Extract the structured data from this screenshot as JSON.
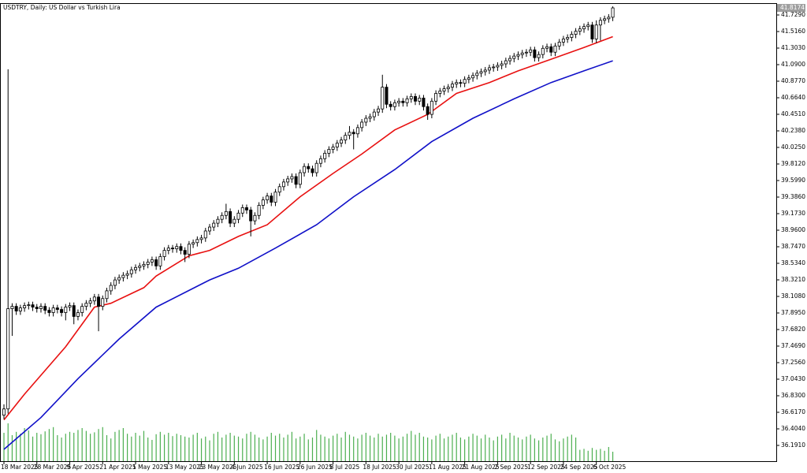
{
  "chart_data": {
    "type": "candlestick",
    "title": "USDTRY, Daily:  US Dollar vs Turkish Lira",
    "current_price_label": "41.8174",
    "categories": [
      "18 Mar 2025",
      null,
      null,
      null,
      null,
      null,
      null,
      null,
      "28 Mar 2025",
      null,
      null,
      null,
      null,
      null,
      null,
      null,
      "9 Apr 2025",
      null,
      null,
      null,
      null,
      null,
      null,
      null,
      "21 Apr 2025",
      null,
      null,
      null,
      null,
      null,
      null,
      null,
      "1 May 2025",
      null,
      null,
      null,
      null,
      null,
      null,
      null,
      "13 May 2025",
      null,
      null,
      null,
      null,
      null,
      null,
      null,
      "23 May 2025",
      null,
      null,
      null,
      null,
      null,
      null,
      null,
      "4 Jun 2025",
      null,
      null,
      null,
      null,
      null,
      null,
      null,
      "16 Jun 2025",
      null,
      null,
      null,
      null,
      null,
      null,
      null,
      "26 Jun 2025",
      null,
      null,
      null,
      null,
      null,
      null,
      null,
      "8 Jul 2025",
      null,
      null,
      null,
      null,
      null,
      null,
      null,
      "18 Jul 2025",
      null,
      null,
      null,
      null,
      null,
      null,
      null,
      "30 Jul 2025",
      null,
      null,
      null,
      null,
      null,
      null,
      null,
      "11 Aug 2025",
      null,
      null,
      null,
      null,
      null,
      null,
      null,
      "21 Aug 2025",
      null,
      null,
      null,
      null,
      null,
      null,
      null,
      "2 Sep 2025",
      null,
      null,
      null,
      null,
      null,
      null,
      null,
      "12 Sep 2025",
      null,
      null,
      null,
      null,
      null,
      null,
      null,
      "24 Sep 2025",
      null,
      null,
      null,
      null,
      null,
      null,
      null,
      "6 Oct 2025",
      null,
      null,
      null,
      null
    ],
    "open": [
      36.58,
      36.66,
      37.95,
      37.98,
      37.92,
      37.96,
      37.99,
      38.0,
      37.97,
      37.95,
      37.98,
      37.93,
      37.9,
      37.96,
      37.94,
      37.9,
      37.97,
      37.99,
      37.85,
      37.9,
      37.98,
      38.02,
      38.05,
      38.1,
      37.98,
      38.08,
      38.18,
      38.25,
      38.32,
      38.35,
      38.38,
      38.4,
      38.45,
      38.48,
      38.5,
      38.52,
      38.55,
      38.58,
      38.5,
      38.62,
      38.7,
      38.73,
      38.72,
      38.75,
      38.7,
      38.65,
      38.78,
      38.8,
      38.84,
      38.86,
      38.95,
      39.0,
      39.05,
      39.1,
      39.15,
      39.2,
      39.05,
      39.1,
      39.18,
      39.25,
      39.22,
      39.08,
      39.15,
      39.28,
      39.35,
      39.4,
      39.32,
      39.45,
      39.52,
      39.58,
      39.62,
      39.65,
      39.55,
      39.7,
      39.78,
      39.75,
      39.7,
      39.82,
      39.88,
      39.95,
      40.0,
      40.03,
      40.08,
      40.12,
      40.18,
      40.22,
      40.2,
      40.28,
      40.35,
      40.4,
      40.42,
      40.48,
      40.52,
      40.8,
      40.58,
      40.55,
      40.6,
      40.62,
      40.6,
      40.65,
      40.68,
      40.62,
      40.66,
      40.55,
      40.45,
      40.62,
      40.72,
      40.75,
      40.78,
      40.8,
      40.84,
      40.86,
      40.85,
      40.9,
      40.92,
      40.95,
      40.98,
      41.0,
      41.02,
      41.05,
      41.06,
      41.08,
      41.1,
      41.14,
      41.17,
      41.2,
      41.22,
      41.24,
      41.25,
      41.28,
      41.18,
      41.22,
      41.3,
      41.32,
      41.25,
      41.33,
      41.38,
      41.42,
      41.44,
      41.48,
      41.52,
      41.55,
      41.58,
      41.6,
      41.42,
      41.6,
      41.66,
      41.68,
      41.7
    ],
    "high": [
      36.72,
      41.03,
      38.02,
      38.02,
      38.0,
      38.03,
      38.04,
      38.04,
      38.01,
      38.02,
      38.02,
      37.97,
      38.0,
      38.0,
      37.98,
      38.01,
      38.03,
      38.03,
      37.94,
      38.02,
      38.06,
      38.09,
      38.14,
      38.14,
      38.12,
      38.22,
      38.29,
      38.36,
      38.39,
      38.42,
      38.44,
      38.49,
      38.52,
      38.54,
      38.56,
      38.59,
      38.62,
      38.62,
      38.66,
      38.74,
      38.77,
      38.77,
      38.79,
      38.79,
      38.74,
      38.82,
      38.84,
      38.88,
      38.9,
      38.99,
      39.04,
      39.09,
      39.14,
      39.19,
      39.3,
      39.24,
      39.14,
      39.22,
      39.29,
      39.29,
      39.26,
      39.19,
      39.32,
      39.39,
      39.44,
      39.44,
      39.49,
      39.56,
      39.62,
      39.66,
      39.69,
      39.69,
      39.74,
      39.82,
      39.82,
      39.79,
      39.86,
      39.92,
      39.99,
      40.04,
      40.07,
      40.12,
      40.16,
      40.22,
      40.3,
      40.26,
      40.32,
      40.39,
      40.44,
      40.46,
      40.52,
      40.56,
      40.96,
      40.84,
      40.62,
      40.64,
      40.66,
      40.66,
      40.69,
      40.72,
      40.72,
      40.7,
      40.7,
      40.59,
      40.66,
      40.76,
      40.79,
      40.82,
      40.84,
      40.88,
      40.9,
      40.9,
      40.94,
      40.96,
      40.99,
      41.02,
      41.04,
      41.06,
      41.09,
      41.1,
      41.12,
      41.14,
      41.18,
      41.21,
      41.24,
      41.26,
      41.28,
      41.29,
      41.32,
      41.32,
      41.26,
      41.34,
      41.36,
      41.36,
      41.37,
      41.42,
      41.46,
      41.48,
      41.52,
      41.56,
      41.59,
      41.62,
      41.64,
      41.64,
      41.66,
      41.7,
      41.72,
      41.74,
      41.84
    ],
    "low": [
      36.53,
      36.6,
      37.6,
      37.87,
      37.87,
      37.91,
      37.94,
      37.92,
      37.9,
      37.9,
      37.88,
      37.85,
      37.85,
      37.89,
      37.85,
      37.8,
      37.92,
      37.75,
      37.8,
      37.85,
      37.93,
      37.97,
      38.0,
      37.66,
      37.93,
      38.03,
      38.13,
      38.2,
      38.27,
      38.3,
      38.33,
      38.35,
      38.4,
      38.43,
      38.45,
      38.47,
      38.5,
      38.45,
      38.45,
      38.57,
      38.65,
      38.67,
      38.67,
      38.65,
      38.55,
      38.6,
      38.73,
      38.75,
      38.79,
      38.81,
      38.9,
      38.95,
      39.0,
      39.05,
      39.1,
      39.0,
      39.0,
      39.05,
      39.13,
      39.17,
      38.88,
      39.03,
      39.1,
      39.23,
      39.3,
      39.27,
      39.27,
      39.4,
      39.47,
      39.53,
      39.57,
      39.5,
      39.5,
      39.65,
      39.7,
      39.65,
      39.65,
      39.77,
      39.83,
      39.9,
      39.95,
      39.98,
      40.03,
      40.07,
      40.13,
      40.0,
      40.15,
      40.23,
      40.3,
      40.35,
      40.37,
      40.43,
      40.47,
      40.53,
      40.5,
      40.5,
      40.55,
      40.55,
      40.55,
      40.6,
      40.57,
      40.57,
      40.5,
      40.38,
      40.4,
      40.57,
      40.67,
      40.7,
      40.73,
      40.75,
      40.79,
      40.8,
      40.8,
      40.85,
      40.87,
      40.9,
      40.93,
      40.95,
      40.97,
      41.0,
      41.01,
      41.03,
      41.05,
      41.09,
      41.12,
      41.15,
      41.17,
      41.19,
      41.2,
      41.13,
      41.13,
      41.17,
      41.25,
      41.2,
      41.2,
      41.28,
      41.33,
      41.37,
      41.39,
      41.43,
      41.47,
      41.5,
      41.53,
      41.37,
      41.37,
      41.4,
      41.61,
      41.63,
      41.65
    ],
    "close": [
      36.66,
      37.95,
      37.98,
      37.92,
      37.96,
      37.99,
      38.0,
      37.97,
      37.95,
      37.98,
      37.93,
      37.9,
      37.96,
      37.94,
      37.9,
      37.97,
      37.99,
      37.85,
      37.9,
      37.98,
      38.02,
      38.05,
      38.1,
      37.98,
      38.08,
      38.18,
      38.25,
      38.32,
      38.35,
      38.38,
      38.4,
      38.45,
      38.48,
      38.5,
      38.52,
      38.55,
      38.58,
      38.5,
      38.62,
      38.7,
      38.73,
      38.72,
      38.75,
      38.7,
      38.65,
      38.78,
      38.8,
      38.84,
      38.86,
      38.95,
      39.0,
      39.05,
      39.1,
      39.15,
      39.2,
      39.05,
      39.1,
      39.18,
      39.25,
      39.22,
      39.08,
      39.15,
      39.28,
      39.35,
      39.4,
      39.32,
      39.45,
      39.52,
      39.58,
      39.62,
      39.65,
      39.55,
      39.7,
      39.78,
      39.75,
      39.7,
      39.82,
      39.88,
      39.95,
      40.0,
      40.03,
      40.08,
      40.12,
      40.18,
      40.22,
      40.2,
      40.28,
      40.35,
      40.4,
      40.42,
      40.48,
      40.52,
      40.8,
      40.58,
      40.55,
      40.6,
      40.62,
      40.6,
      40.65,
      40.68,
      40.62,
      40.66,
      40.55,
      40.45,
      40.62,
      40.72,
      40.75,
      40.78,
      40.8,
      40.84,
      40.86,
      40.85,
      40.9,
      40.92,
      40.95,
      40.98,
      41.0,
      41.02,
      41.05,
      41.06,
      41.08,
      41.1,
      41.14,
      41.17,
      41.2,
      41.22,
      41.24,
      41.25,
      41.28,
      41.18,
      41.22,
      41.3,
      41.32,
      41.25,
      41.33,
      41.38,
      41.42,
      41.44,
      41.48,
      41.52,
      41.55,
      41.58,
      41.6,
      41.42,
      41.6,
      41.66,
      41.68,
      41.7,
      41.82
    ],
    "volume": [
      60,
      80,
      55,
      62,
      58,
      70,
      65,
      52,
      60,
      57,
      63,
      68,
      72,
      55,
      50,
      58,
      62,
      60,
      66,
      70,
      64,
      58,
      61,
      68,
      72,
      55,
      48,
      62,
      66,
      70,
      58,
      52,
      60,
      54,
      64,
      50,
      45,
      57,
      62,
      56,
      60,
      53,
      58,
      55,
      52,
      50,
      56,
      60,
      48,
      52,
      44,
      58,
      62,
      50,
      56,
      60,
      54,
      52,
      48,
      58,
      62,
      56,
      50,
      46,
      52,
      60,
      54,
      58,
      50,
      56,
      62,
      48,
      52,
      58,
      46,
      50,
      66,
      56,
      52,
      48,
      54,
      58,
      50,
      62,
      56,
      52,
      48,
      56,
      60,
      54,
      50,
      58,
      52,
      56,
      60,
      54,
      48,
      52,
      58,
      64,
      56,
      60,
      52,
      50,
      46,
      54,
      58,
      48,
      52,
      56,
      60,
      50,
      46,
      52,
      58,
      54,
      48,
      56,
      50,
      44,
      52,
      56,
      48,
      60,
      54,
      50,
      46,
      52,
      56,
      48,
      44,
      50,
      54,
      58,
      46,
      42,
      48,
      52,
      56,
      50,
      24,
      26,
      22,
      28,
      24,
      26,
      22,
      30,
      20
    ],
    "volume_lim": [
      0,
      100
    ],
    "volume_color": "#4caf50",
    "series": [
      {
        "color": "#e81010",
        "x": [
          0,
          5,
          15,
          22,
          26,
          34,
          37,
          45,
          50,
          57,
          64,
          72,
          80,
          87,
          95,
          103,
          110,
          118,
          125,
          133,
          141,
          148
        ],
        "values": [
          36.52,
          36.85,
          37.46,
          37.97,
          38.02,
          38.22,
          38.37,
          38.63,
          38.7,
          38.88,
          39.03,
          39.39,
          39.69,
          39.94,
          40.25,
          40.45,
          40.72,
          40.86,
          41.01,
          41.16,
          41.31,
          41.45
        ]
      },
      {
        "color": "#1010c8",
        "x": [
          0,
          9,
          18,
          28,
          37,
          50,
          57,
          66,
          76,
          85,
          95,
          104,
          114,
          124,
          133,
          141,
          148
        ],
        "values": [
          36.14,
          36.55,
          37.05,
          37.56,
          37.97,
          38.32,
          38.47,
          38.73,
          39.03,
          39.39,
          39.74,
          40.1,
          40.4,
          40.65,
          40.86,
          41.01,
          41.14
        ]
      }
    ],
    "ylim": [
      35.988,
      41.871
    ],
    "yticks": [
      {
        "value": 41.729,
        "label": "41.7290"
      },
      {
        "value": 41.516,
        "label": "41.5160"
      },
      {
        "value": 41.303,
        "label": "41.3030"
      },
      {
        "value": 41.09,
        "label": "41.0900"
      },
      {
        "value": 40.877,
        "label": "40.8770"
      },
      {
        "value": 40.664,
        "label": "40.6640"
      },
      {
        "value": 40.451,
        "label": "40.4510"
      },
      {
        "value": 40.238,
        "label": "40.2380"
      },
      {
        "value": 40.025,
        "label": "40.0250"
      },
      {
        "value": 39.812,
        "label": "39.8120"
      },
      {
        "value": 39.599,
        "label": "39.5990"
      },
      {
        "value": 39.386,
        "label": "39.3860"
      },
      {
        "value": 39.173,
        "label": "39.1730"
      },
      {
        "value": 38.96,
        "label": "38.9600"
      },
      {
        "value": 38.747,
        "label": "38.7470"
      },
      {
        "value": 38.534,
        "label": "38.5340"
      },
      {
        "value": 38.321,
        "label": "38.3210"
      },
      {
        "value": 38.108,
        "label": "38.1080"
      },
      {
        "value": 37.895,
        "label": "37.8950"
      },
      {
        "value": 37.682,
        "label": "37.6820"
      },
      {
        "value": 37.469,
        "label": "37.4690"
      },
      {
        "value": 37.256,
        "label": "37.2560"
      },
      {
        "value": 37.043,
        "label": "37.0430"
      },
      {
        "value": 36.83,
        "label": "36.8300"
      },
      {
        "value": 36.617,
        "label": "36.6170"
      },
      {
        "value": 36.404,
        "label": "36.4040"
      },
      {
        "value": 36.191,
        "label": "36.1910"
      }
    ],
    "up_fill": "#ffffff",
    "down_fill": "#000000",
    "candle_color": "#000000"
  }
}
